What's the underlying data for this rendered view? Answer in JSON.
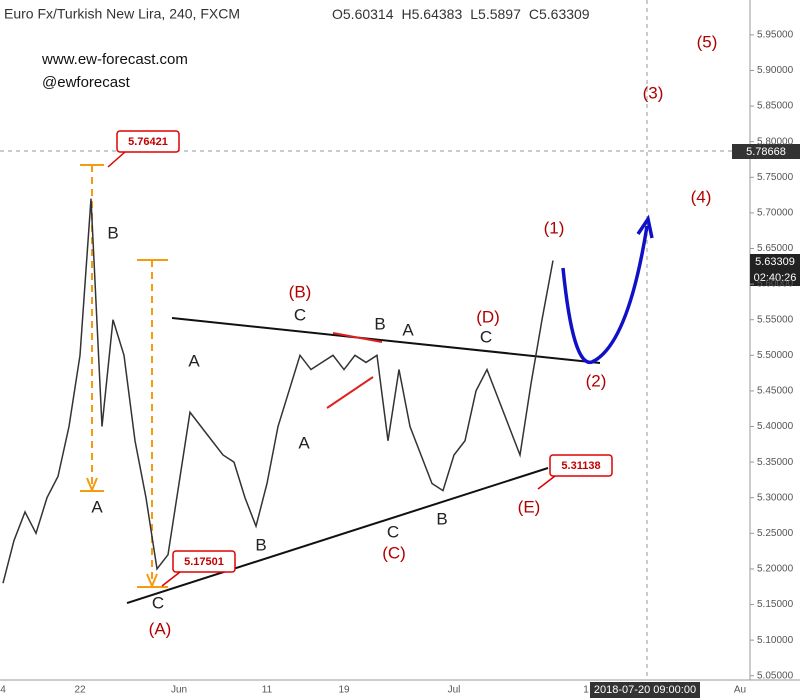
{
  "header": {
    "title": "Euro Fx/Turkish New Lira, 240, FXCM",
    "ohlc": [
      {
        "label": "O",
        "value": 5.60314
      },
      {
        "label": "H",
        "value": 5.64383
      },
      {
        "label": "L",
        "value": 5.5897
      },
      {
        "label": "C",
        "value": 5.63309
      }
    ]
  },
  "notes": [
    "www.ew-forecast.com",
    "@ewforecast"
  ],
  "chart_data": {
    "type": "line",
    "color": "#333333",
    "categories": [
      "4",
      null,
      null,
      null,
      null,
      null,
      null,
      "22",
      null,
      null,
      null,
      null,
      null,
      null,
      null,
      null,
      "Jun",
      null,
      null,
      null,
      null,
      null,
      null,
      null,
      "11",
      null,
      null,
      null,
      null,
      null,
      null,
      "19",
      null,
      null,
      null,
      null,
      null,
      null,
      null,
      null,
      null,
      "Jul",
      null,
      null,
      null,
      null,
      null,
      null,
      null,
      null,
      null,
      null,
      null,
      "1",
      null,
      null,
      null,
      null,
      null,
      null,
      null,
      null,
      null,
      null,
      null,
      null,
      null,
      "Au"
    ],
    "values": [
      5.18,
      5.24,
      5.28,
      5.25,
      5.3,
      5.33,
      5.4,
      5.5,
      5.72,
      5.4,
      5.55,
      5.5,
      5.38,
      5.3,
      5.2,
      5.22,
      5.32,
      5.42,
      5.4,
      5.38,
      5.36,
      5.35,
      5.3,
      5.26,
      5.32,
      5.4,
      5.45,
      5.5,
      5.48,
      5.49,
      5.5,
      5.48,
      5.5,
      5.49,
      5.5,
      5.38,
      5.48,
      5.4,
      5.36,
      5.32,
      5.31,
      5.36,
      5.38,
      5.45,
      5.48,
      5.44,
      5.4,
      5.36,
      5.46,
      5.55,
      5.63309,
      null,
      null,
      null,
      null,
      null,
      null,
      null,
      null,
      null,
      null,
      null,
      null,
      null,
      null,
      null,
      null,
      null
    ],
    "ylim": [
      5.044,
      5.999
    ],
    "yticks": [
      {
        "value": 5.05,
        "label": "5.05000"
      },
      {
        "value": 5.1,
        "label": "5.10000"
      },
      {
        "value": 5.15,
        "label": "5.15000"
      },
      {
        "value": 5.2,
        "label": "5.20000"
      },
      {
        "value": 5.25,
        "label": "5.25000"
      },
      {
        "value": 5.3,
        "label": "5.30000"
      },
      {
        "value": 5.35,
        "label": "5.35000"
      },
      {
        "value": 5.4,
        "label": "5.40000"
      },
      {
        "value": 5.45,
        "label": "5.45000"
      },
      {
        "value": 5.5,
        "label": "5.50000"
      },
      {
        "value": 5.55,
        "label": "5.55000"
      },
      {
        "value": 5.6,
        "label": "5.60000"
      },
      {
        "value": 5.65,
        "label": "5.65000"
      },
      {
        "value": 5.7,
        "label": "5.70000"
      },
      {
        "value": 5.75,
        "label": "5.75000"
      },
      {
        "value": 5.8,
        "label": "5.80000"
      },
      {
        "value": 5.85,
        "label": "5.85000"
      },
      {
        "value": 5.9,
        "label": "5.90000"
      },
      {
        "value": 5.95,
        "label": "5.95000"
      }
    ],
    "crosshair_price": 5.78668,
    "last_price": 5.63309,
    "countdown": "02:40:26",
    "crosshair_time": "2018-07-20 09:00:00",
    "callouts": [
      5.76421,
      5.17501,
      5.31138
    ],
    "wave_labels": [
      "B",
      "A",
      "C",
      "(A)",
      "A",
      "A",
      "B",
      "(B)",
      "C",
      "B",
      "A",
      "C",
      "(C)",
      "B",
      "(D)",
      "C",
      "(E)",
      "(1)",
      "(2)",
      "(3)",
      "(4)",
      "(5)"
    ]
  }
}
